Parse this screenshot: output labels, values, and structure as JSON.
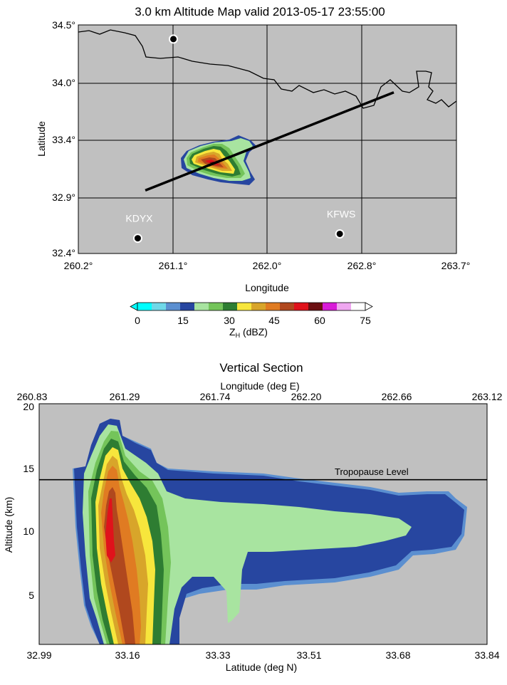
{
  "colors": {
    "background": "#c0c0c0",
    "scale": [
      "#00ffff",
      "#6fd8e8",
      "#5b8fd0",
      "#2746a0",
      "#a8e4a0",
      "#74c45a",
      "#2e7d32",
      "#f7e63c",
      "#d8a52a",
      "#e07b22",
      "#b0481e",
      "#e0121b",
      "#6b0f12",
      "#d81bd8",
      "#efa7f0",
      "#ffffff"
    ]
  },
  "map": {
    "title": "3.0 km Altitude Map valid 2013-05-17 23:55:00",
    "xlabel": "Longitude",
    "ylabel": "Latitude",
    "xticks": [
      "260.2°",
      "261.1°",
      "262.0°",
      "262.8°",
      "263.7°"
    ],
    "yticks": [
      "34.5°",
      "34.0°",
      "33.4°",
      "32.9°",
      "32.4°"
    ],
    "stations": [
      {
        "name": "KDYX",
        "lon": 260.75,
        "lat": 32.54
      },
      {
        "name": "KFWS",
        "lon": 262.62,
        "lat": 32.58
      },
      {
        "name": "",
        "lon": 261.08,
        "lat": 34.37
      }
    ],
    "section_line": {
      "start": [
        260.82,
        32.98
      ],
      "end": [
        263.12,
        33.88
      ]
    }
  },
  "colorbar": {
    "ticks": [
      "0",
      "15",
      "30",
      "45",
      "60",
      "75"
    ],
    "label_main": "Z",
    "label_sub": "H",
    "label_unit": " (dBZ)",
    "range": [
      0,
      75
    ]
  },
  "section": {
    "title": "Vertical Section",
    "top_axis_label": "Longitude (deg E)",
    "top_ticks": [
      "260.83",
      "261.29",
      "261.74",
      "262.20",
      "262.66",
      "263.12"
    ],
    "bottom_ticks": [
      "32.99",
      "33.16",
      "33.33",
      "33.51",
      "33.68",
      "33.84"
    ],
    "xlabel": "Latitude (deg N)",
    "ylabel": "Altitude (km)",
    "yticks": [
      "20",
      "15",
      "10",
      "5"
    ],
    "tropopause_label": "Tropopause Level",
    "tropopause_km": 14.0
  },
  "chart_data": [
    {
      "type": "heatmap",
      "title": "3.0 km Altitude Map valid 2013-05-17 23:55:00",
      "xlabel": "Longitude",
      "ylabel": "Latitude",
      "xlim": [
        260.2,
        263.7
      ],
      "ylim": [
        32.4,
        34.5
      ],
      "value_label": "Z_H (dBZ)",
      "value_range": [
        0,
        75
      ],
      "features": {
        "reflectivity_core_center": [
          261.3,
          33.21
        ],
        "max_dBZ_approx": 60
      }
    },
    {
      "type": "heatmap",
      "title": "Vertical Section",
      "xlabel": "Latitude (deg N)",
      "ylabel": "Altitude (km)",
      "xlim": [
        32.99,
        33.84
      ],
      "ylim": [
        1,
        20
      ],
      "secondary_xlabel": "Longitude (deg E)",
      "secondary_xlim": [
        260.83,
        263.12
      ],
      "annotations": [
        {
          "text": "Tropopause Level",
          "altitude_km": 14.0
        }
      ],
      "features": {
        "core_latitude": 33.14,
        "echo_top_km": 19,
        "anvil_extent_latitude": [
          33.08,
          33.8
        ],
        "anvil_altitude_km": [
          6.5,
          13.8
        ]
      }
    }
  ]
}
